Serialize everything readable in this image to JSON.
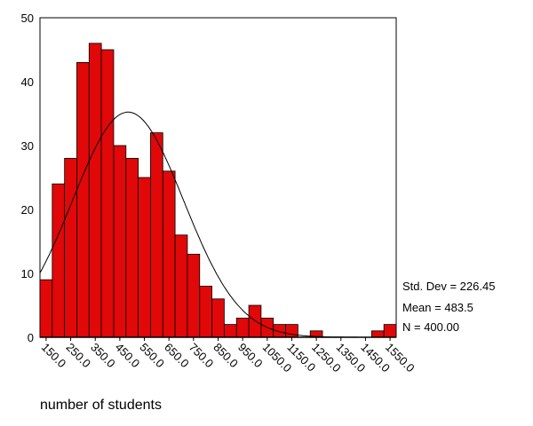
{
  "chart_data": {
    "type": "bar",
    "title": "",
    "xlabel": "number of students",
    "ylabel": "",
    "bin_width": 50,
    "bin_centers": [
      150,
      200,
      250,
      300,
      350,
      400,
      450,
      500,
      550,
      600,
      650,
      700,
      750,
      800,
      850,
      900,
      950,
      1000,
      1050,
      1100,
      1150,
      1200,
      1250,
      1300,
      1350,
      1400,
      1450,
      1500,
      1550
    ],
    "values": [
      9,
      24,
      28,
      43,
      46,
      45,
      30,
      28,
      25,
      32,
      26,
      16,
      13,
      8,
      6,
      2,
      3,
      5,
      3,
      2,
      2,
      0,
      1,
      0,
      0,
      0,
      0,
      1,
      2
    ],
    "x_tick_labels": [
      "150.0",
      "250.0",
      "350.0",
      "450.0",
      "550.0",
      "650.0",
      "750.0",
      "850.0",
      "950.0",
      "1050.0",
      "1150.0",
      "1250.0",
      "1350.0",
      "1450.0",
      "1550.0"
    ],
    "y_ticks": [
      0,
      10,
      20,
      30,
      40,
      50
    ],
    "ylim": [
      0,
      50
    ],
    "normal_curve": {
      "mean": 483.5,
      "std_dev": 226.45,
      "n": 400
    },
    "bar_color": "#e00808",
    "grid": false
  },
  "stats": {
    "std_dev": "Std. Dev = 226.45",
    "mean": "Mean = 483.5",
    "n": "N = 400.00"
  }
}
